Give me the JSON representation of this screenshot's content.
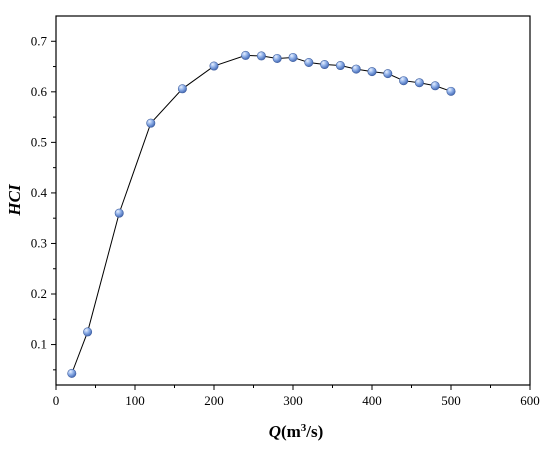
{
  "chart_data": {
    "type": "line",
    "title": "",
    "xlabel_var": "Q",
    "xlabel_unit_pre": "(m",
    "xlabel_unit_sup": "3",
    "xlabel_unit_post": "/s)",
    "ylabel": "HCI",
    "xlim": [
      0,
      600
    ],
    "ylim": [
      0.02,
      0.75
    ],
    "xticks": [
      0,
      100,
      200,
      300,
      400,
      500,
      600
    ],
    "yticks": [
      0.1,
      0.2,
      0.3,
      0.4,
      0.5,
      0.6,
      0.7
    ],
    "grid": false,
    "series": [
      {
        "x": [
          20,
          40,
          80,
          120,
          160,
          200,
          240,
          260,
          280,
          300,
          320,
          340,
          360,
          380,
          400,
          420,
          440,
          460,
          480,
          500
        ],
        "y": [
          0.043,
          0.125,
          0.36,
          0.538,
          0.606,
          0.651,
          0.672,
          0.671,
          0.666,
          0.668,
          0.658,
          0.654,
          0.652,
          0.645,
          0.64,
          0.636,
          0.622,
          0.618,
          0.612,
          0.601
        ]
      }
    ],
    "colors": {
      "line": "#000000",
      "marker": "#6f95d6",
      "marker_edge": "#3f5f9f"
    }
  }
}
